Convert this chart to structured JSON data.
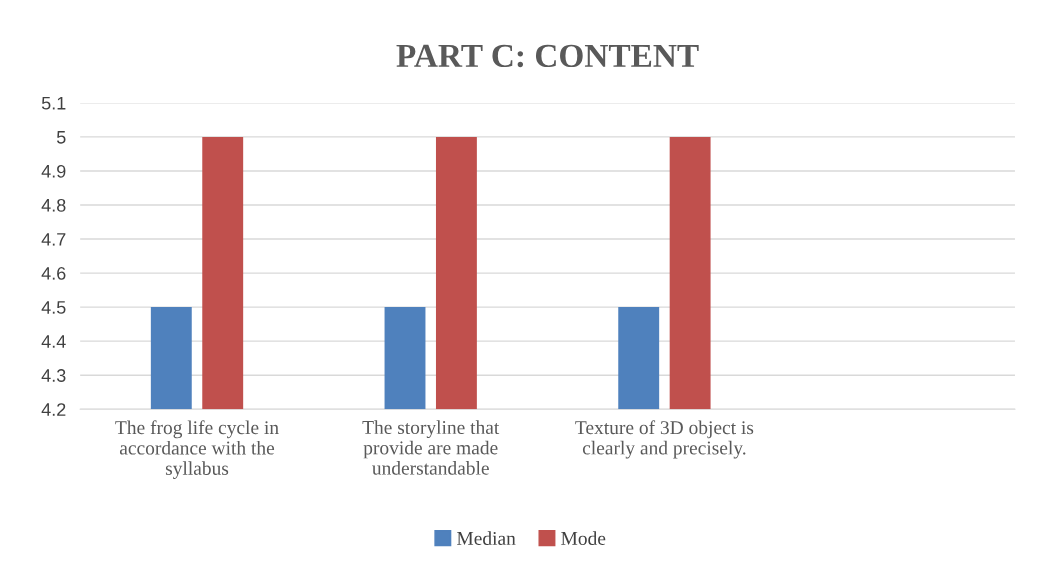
{
  "chart_data": {
    "type": "bar",
    "title": "PART C: CONTENT",
    "categories": [
      "The frog life cycle in\naccordance with the\nsyllabus",
      "The storyline that\nprovide are made\nunderstandable",
      "Texture of 3D object is\nclearly and precisely.",
      null
    ],
    "series": [
      {
        "name": "Median",
        "color": "#4f81bd",
        "values": [
          4.5,
          4.5,
          4.5,
          null
        ]
      },
      {
        "name": "Mode",
        "color": "#c0504d",
        "values": [
          5,
          5,
          5,
          null
        ]
      }
    ],
    "ylim": [
      4.2,
      5.1
    ],
    "yticks": [
      {
        "value": 4.2,
        "label": "4.2"
      },
      {
        "value": 4.3,
        "label": "4.3"
      },
      {
        "value": 4.4,
        "label": "4.4"
      },
      {
        "value": 4.5,
        "label": "4.5"
      },
      {
        "value": 4.6,
        "label": "4.6"
      },
      {
        "value": 4.7,
        "label": "4.7"
      },
      {
        "value": 4.8,
        "label": "4.8"
      },
      {
        "value": 4.9,
        "label": "4.9"
      },
      {
        "value": 5,
        "label": "5"
      },
      {
        "value": 5.1,
        "label": "5.1"
      }
    ],
    "grid": "y",
    "legend": "bottom"
  }
}
